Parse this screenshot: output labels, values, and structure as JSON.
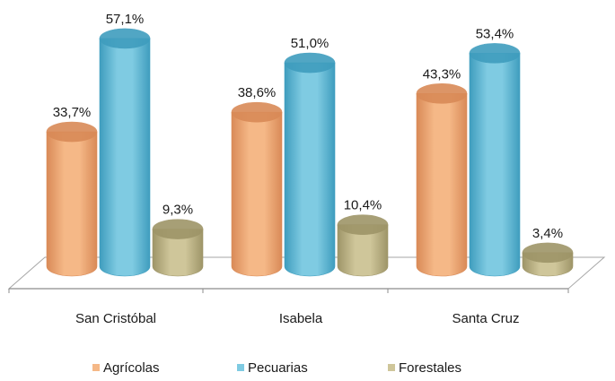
{
  "chart_data": {
    "type": "bar",
    "categories": [
      "San Cristóbal",
      "Isabela",
      "Santa Cruz"
    ],
    "series": [
      {
        "name": "Agrícolas",
        "values": [
          33.7,
          38.6,
          43.3
        ],
        "labels": [
          "33,7%",
          "38,6%",
          "43,3%"
        ],
        "color": "#F5B887",
        "color_dark": "#D98A57"
      },
      {
        "name": "Pecuarias",
        "values": [
          57.1,
          51.0,
          53.4
        ],
        "labels": [
          "57,1%",
          "51,0%",
          "53,4%"
        ],
        "color": "#7FCBE2",
        "color_dark": "#3F9DBE"
      },
      {
        "name": "Forestales",
        "values": [
          9.3,
          10.4,
          3.4
        ],
        "labels": [
          "9,3%",
          "10,4%",
          "3,4%"
        ],
        "color": "#CFC69A",
        "color_dark": "#9E9568"
      }
    ],
    "legend_position": "bottom",
    "grid": false,
    "ylim": [
      0,
      60
    ]
  }
}
